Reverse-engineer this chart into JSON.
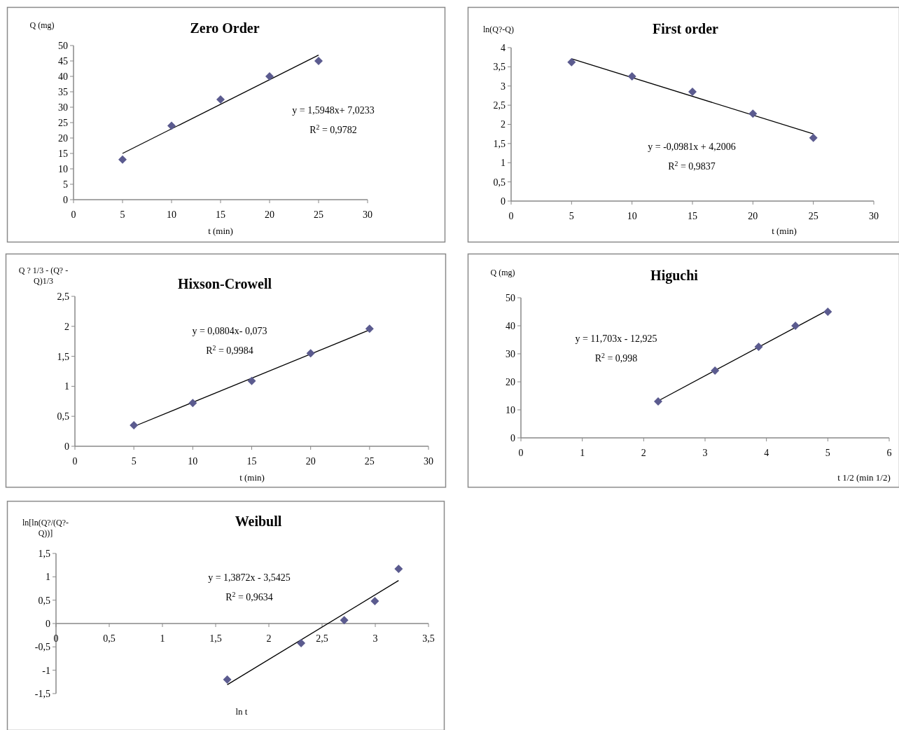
{
  "chart_data": [
    {
      "type": "scatter",
      "title": "Zero Order",
      "xlabel": "t (min)",
      "ylabel": "Q (mg)",
      "grid": false,
      "xlim": [
        0,
        30
      ],
      "xticks": [
        0,
        5,
        10,
        15,
        20,
        25,
        30
      ],
      "ylim": [
        0,
        50
      ],
      "yticks": [
        0,
        5,
        10,
        15,
        20,
        25,
        30,
        35,
        40,
        45,
        50
      ],
      "annotations": [
        "y = 1,5948x+ 7,0233",
        "R$^{2}$ = 0,9782"
      ],
      "series": [
        {
          "color": "#5b5b8f",
          "marker": "diamond",
          "x": [
            5,
            10,
            15,
            20,
            25
          ],
          "values": [
            13,
            24,
            32.5,
            40,
            45
          ]
        },
        {
          "type": "line",
          "color": "#000000",
          "x": [
            5,
            25
          ],
          "values": [
            15.0,
            46.9
          ]
        }
      ]
    },
    {
      "type": "scatter",
      "title": "First order",
      "xlabel": "t (min)",
      "ylabel": "ln(Q?-Q)",
      "grid": false,
      "xlim": [
        0,
        30
      ],
      "xticks": [
        0,
        5,
        10,
        15,
        20,
        25,
        30
      ],
      "ylim": [
        0,
        4
      ],
      "yticks": [
        0,
        {
          "value": 0.5,
          "label": "0,5"
        },
        1,
        {
          "value": 1.5,
          "label": "1,5"
        },
        2,
        {
          "value": 2.5,
          "label": "2,5"
        },
        3,
        {
          "value": 3.5,
          "label": "3,5"
        },
        4
      ],
      "annotations": [
        "y = -0,0981x + 4,2006",
        "R$^{2}$ = 0,9837"
      ],
      "series": [
        {
          "color": "#5b5b8f",
          "marker": "diamond",
          "x": [
            5,
            10,
            15,
            20,
            25
          ],
          "values": [
            3.62,
            3.25,
            2.85,
            2.28,
            1.65
          ]
        },
        {
          "type": "line",
          "color": "#000000",
          "x": [
            5,
            25
          ],
          "values": [
            3.71,
            1.75
          ]
        }
      ]
    },
    {
      "type": "scatter",
      "title": "Hixson-Crowell",
      "xlabel": "t (min)",
      "ylabel": "Q ? 1/3 - (Q? - Q)1/3",
      "grid": false,
      "xlim": [
        0,
        30
      ],
      "xticks": [
        0,
        5,
        10,
        15,
        20,
        25,
        30
      ],
      "ylim": [
        0,
        2.5
      ],
      "yticks": [
        0,
        {
          "value": 0.5,
          "label": "0,5"
        },
        1,
        {
          "value": 1.5,
          "label": "1,5"
        },
        2,
        {
          "value": 2.5,
          "label": "2,5"
        }
      ],
      "annotations": [
        "y = 0,0804x- 0,073",
        "R$^{2}$ = 0,9984"
      ],
      "series": [
        {
          "color": "#5b5b8f",
          "marker": "diamond",
          "x": [
            5,
            10,
            15,
            20,
            25
          ],
          "values": [
            0.35,
            0.72,
            1.09,
            1.55,
            1.96
          ]
        },
        {
          "type": "line",
          "color": "#000000",
          "x": [
            5,
            25
          ],
          "values": [
            0.33,
            1.94
          ]
        }
      ]
    },
    {
      "type": "scatter",
      "title": "Higuchi",
      "xlabel": "t 1/2 (min 1/2)",
      "ylabel": "Q (mg)",
      "grid": false,
      "xlim": [
        0,
        6
      ],
      "xticks": [
        0,
        1,
        2,
        3,
        4,
        5,
        6
      ],
      "ylim": [
        0,
        50
      ],
      "yticks": [
        0,
        10,
        20,
        30,
        40,
        50
      ],
      "annotations": [
        "y = 11,703x - 12,925",
        "R$^{2}$ = 0,998"
      ],
      "series": [
        {
          "color": "#5b5b8f",
          "marker": "diamond",
          "x": [
            2.236,
            3.162,
            3.873,
            4.472,
            5
          ],
          "values": [
            13,
            24,
            32.5,
            40,
            45
          ]
        },
        {
          "type": "line",
          "color": "#000000",
          "x": [
            2.236,
            5
          ],
          "values": [
            13.2,
            45.6
          ]
        }
      ]
    },
    {
      "type": "scatter",
      "title": "Weibull",
      "xlabel": "ln t",
      "ylabel": "ln[ln(Q?/(Q?- Q))]",
      "grid": false,
      "xlim": [
        0,
        3.5
      ],
      "xticks": [
        0,
        {
          "value": 0.5,
          "label": "0,5"
        },
        1,
        {
          "value": 1.5,
          "label": "1,5"
        },
        2,
        {
          "value": 2.5,
          "label": "2,5"
        },
        3,
        {
          "value": 3.5,
          "label": "3,5"
        }
      ],
      "ylim": [
        -1.5,
        1.5
      ],
      "yticks": [
        {
          "value": -1.5,
          "label": "-1,5"
        },
        -1,
        {
          "value": -0.5,
          "label": "-0,5"
        },
        0,
        {
          "value": 0.5,
          "label": "0,5"
        },
        1,
        {
          "value": 1.5,
          "label": "1,5"
        }
      ],
      "annotations": [
        "y = 1,3872x - 3,5425",
        "R$^{2}$ = 0,9634"
      ],
      "series": [
        {
          "color": "#5b5b8f",
          "marker": "diamond",
          "x": [
            1.609,
            2.303,
            2.708,
            2.996,
            3.219
          ],
          "values": [
            -1.2,
            -0.42,
            0.07,
            0.48,
            1.17
          ]
        },
        {
          "type": "line",
          "color": "#000000",
          "x": [
            1.609,
            3.219
          ],
          "values": [
            -1.31,
            0.92
          ]
        }
      ]
    }
  ]
}
